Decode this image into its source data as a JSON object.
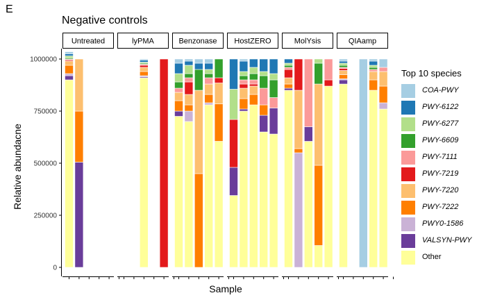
{
  "panel_label": "E",
  "chart_data": {
    "type": "bar",
    "stacked": true,
    "title": "Negative controls",
    "xlabel": "Sample",
    "ylabel": "Relative abundacne",
    "ylim": [
      0,
      1000000
    ],
    "yticks": [
      0,
      250000,
      500000,
      750000,
      1000000
    ],
    "ytick_labels": [
      "0",
      "250000",
      "500000",
      "750000",
      "1000000"
    ],
    "legend_title": "Top 10 species",
    "legend_placement": "right",
    "categories": [
      "COA-PWY",
      "PWY-6122",
      "PWY-6277",
      "PWY-6609",
      "PWY-7111",
      "PWY-7219",
      "PWY-7220",
      "PWY-7222",
      "PWY0-1586",
      "VALSYN-PWY",
      "Other"
    ],
    "colors": {
      "COA-PWY": "#a6cee3",
      "PWY-6122": "#1f78b4",
      "PWY-6277": "#b2df8a",
      "PWY-6609": "#33a02c",
      "PWY-7111": "#fb9a99",
      "PWY-7219": "#e31a1c",
      "PWY-7220": "#fdbf6f",
      "PWY-7222": "#ff7f00",
      "PWY0-1586": "#cab2d6",
      "VALSYN-PWY": "#6a3d9a",
      "Other": "#ffff99"
    },
    "stack_order": [
      "Other",
      "VALSYN-PWY",
      "PWY0-1586",
      "PWY-7222",
      "PWY-7220",
      "PWY-7219",
      "PWY-7111",
      "PWY-6609",
      "PWY-6277",
      "PWY-6122",
      "COA-PWY"
    ],
    "facets": [
      {
        "name": "Untreated",
        "samples": [
          {
            "Other": 900000,
            "VALSYN-PWY": 20000,
            "PWY0-1586": 10000,
            "PWY-7222": 40000,
            "PWY-7220": 20000,
            "PWY-7219": 5000,
            "PWY-7111": 5000,
            "PWY-6609": 5000,
            "PWY-6277": 10000,
            "PWY-6122": 10000,
            "COA-PWY": 10000
          },
          {
            "VALSYN-PWY": 505000,
            "PWY-7222": 245000,
            "PWY-7220": 250000
          },
          null,
          null,
          null,
          null
        ]
      },
      {
        "name": "lyPMA",
        "samples": [
          null,
          null,
          {
            "Other": 910000,
            "VALSYN-PWY": 5000,
            "PWY0-1586": 5000,
            "PWY-7222": 20000,
            "PWY-7220": 20000,
            "PWY-7219": 10000,
            "PWY-7111": 5000,
            "PWY-6609": 5000,
            "PWY-6277": 5000,
            "PWY-6122": 10000,
            "COA-PWY": 5000
          },
          null,
          {
            "PWY-7219": 1000000
          },
          null
        ]
      },
      {
        "name": "Benzonase",
        "samples": [
          {
            "Other": 725000,
            "VALSYN-PWY": 25000,
            "PWY0-1586": 0,
            "PWY-7222": 50000,
            "PWY-7220": 40000,
            "PWY-7219": 0,
            "PWY-7111": 20000,
            "PWY-6609": 30000,
            "PWY-6277": 40000,
            "PWY-6122": 50000,
            "COA-PWY": 20000
          },
          {
            "Other": 700000,
            "VALSYN-PWY": 0,
            "PWY0-1586": 50000,
            "PWY-7222": 30000,
            "PWY-7220": 50000,
            "PWY-7219": 60000,
            "PWY-7111": 20000,
            "PWY-6609": 20000,
            "PWY-6277": 40000,
            "PWY-6122": 20000,
            "COA-PWY": 10000
          },
          {
            "PWY-7222": 450000,
            "PWY-7220": 400000,
            "PWY-6609": 100000,
            "PWY-6122": 30000,
            "COA-PWY": 20000
          },
          {
            "Other": 780000,
            "VALSYN-PWY": 0,
            "PWY0-1586": 10000,
            "PWY-7222": 40000,
            "PWY-7220": 50000,
            "PWY-7111": 30000,
            "PWY-6609": 20000,
            "PWY-6277": 20000,
            "PWY-6122": 30000,
            "COA-PWY": 20000
          },
          {
            "Other": 605000,
            "PWY-7222": 180000,
            "PWY-7220": 100000,
            "PWY-6609": 90000,
            "PWY-7219": 25000
          },
          null
        ]
      },
      {
        "name": "HostZERO",
        "samples": [
          {
            "Other": 345000,
            "VALSYN-PWY": 135000,
            "PWY-7219": 230000,
            "PWY-6277": 145000,
            "PWY-6122": 145000
          },
          {
            "Other": 750000,
            "VALSYN-PWY": 10000,
            "PWY-7222": 50000,
            "PWY-7220": 50000,
            "PWY-7219": 20000,
            "PWY-7111": 20000,
            "PWY-6609": 20000,
            "PWY-6277": 20000,
            "PWY-6122": 50000,
            "COA-PWY": 10000
          },
          {
            "Other": 780000,
            "PWY-7222": 50000,
            "PWY-7220": 40000,
            "PWY-7219": 10000,
            "PWY-7111": 20000,
            "PWY-6609": 30000,
            "PWY-6277": 30000,
            "PWY-6122": 40000
          },
          {
            "Other": 650000,
            "VALSYN-PWY": 80000,
            "PWY-7222": 50000,
            "PWY-7111": 80000,
            "PWY-6609": 60000,
            "PWY-6277": 20000,
            "PWY-6122": 60000
          },
          {
            "Other": 640000,
            "VALSYN-PWY": 125000,
            "PWY-7111": 50000,
            "PWY-6609": 85000,
            "PWY-6277": 30000,
            "PWY-6122": 70000
          },
          null
        ]
      },
      {
        "name": "MolYsis",
        "samples": [
          {
            "Other": 850000,
            "VALSYN-PWY": 10000,
            "PWY-7222": 20000,
            "PWY-7220": 30000,
            "PWY-7219": 40000,
            "PWY-7111": 10000,
            "PWY-6609": 10000,
            "PWY-6277": 10000,
            "PWY-6122": 20000
          },
          {
            "PWY0-1586": 550000,
            "PWY-7220": 280000,
            "PWY-7222": 20000,
            "PWY-7219": 150000
          },
          {
            "Other": 605000,
            "VALSYN-PWY": 70000,
            "PWY-7111": 325000
          },
          {
            "Other": 105000,
            "PWY-7222": 385000,
            "PWY-7220": 390000,
            "PWY-6277": 20000,
            "PWY-6609": 100000
          },
          {
            "Other": 870000,
            "PWY-7111": 100000,
            "PWY-7219": 30000
          },
          null
        ]
      },
      {
        "name": "QIAamp",
        "samples": [
          {
            "Other": 880000,
            "VALSYN-PWY": 20000,
            "PWY0-1586": 5000,
            "PWY-7222": 20000,
            "PWY-7220": 20000,
            "PWY-7219": 10000,
            "PWY-7111": 5000,
            "PWY-6609": 10000,
            "PWY-6277": 10000,
            "PWY-6122": 10000,
            "COA-PWY": 10000
          },
          null,
          {
            "COA-PWY": 1000000
          },
          {
            "Other": 850000,
            "VALSYN-PWY": 0,
            "PWY-7222": 50000,
            "PWY-7220": 40000,
            "PWY-7111": 10000,
            "PWY-6609": 10000,
            "PWY-6277": 10000,
            "PWY-6122": 20000,
            "COA-PWY": 10000
          },
          {
            "Other": 760000,
            "PWY0-1586": 30000,
            "PWY-7222": 80000,
            "PWY-7220": 70000,
            "PWY-7111": 20000,
            "COA-PWY": 40000
          },
          null
        ]
      }
    ]
  }
}
